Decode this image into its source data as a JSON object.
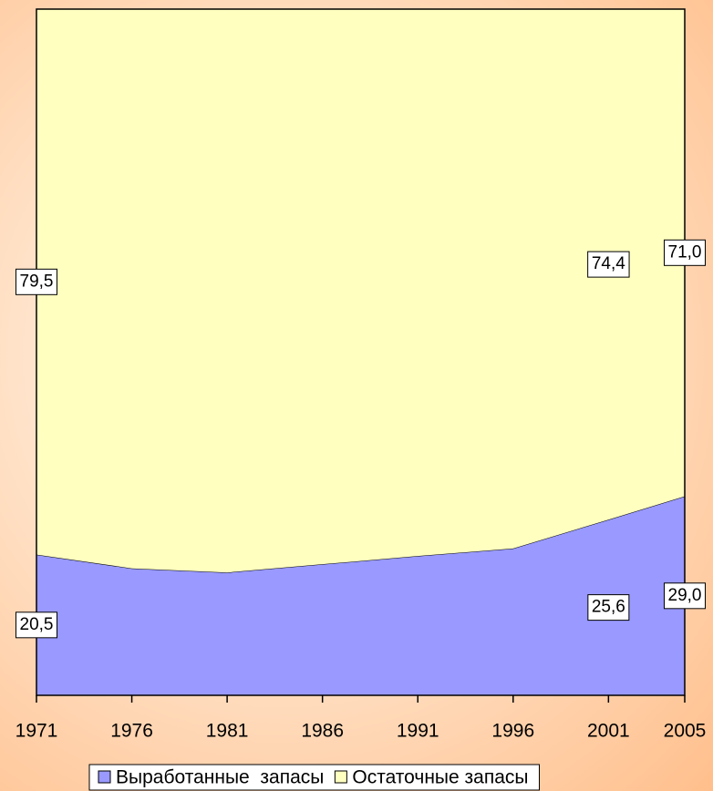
{
  "chart_data": {
    "type": "stacked-area",
    "x": [
      1971,
      1976,
      1981,
      1986,
      1991,
      1996,
      2001,
      2005
    ],
    "xlim": [
      1971,
      2005
    ],
    "xticks": [
      1971,
      1976,
      1981,
      1986,
      1991,
      1996,
      2001,
      2005
    ],
    "ylim": [
      0,
      100
    ],
    "series": [
      {
        "name": "Выработанные  запасы",
        "color": "#9999ff",
        "values": [
          20.5,
          18.5,
          17.9,
          19.1,
          20.3,
          21.4,
          25.6,
          29.0
        ],
        "value_labels": [
          "20,5",
          null,
          null,
          null,
          null,
          null,
          "25,6",
          "29,0"
        ]
      },
      {
        "name": "Остаточные запасы",
        "color": "#ffffc0",
        "values": [
          79.5,
          81.5,
          82.1,
          80.9,
          79.7,
          78.6,
          74.4,
          71.0
        ],
        "value_labels": [
          "79,5",
          null,
          null,
          null,
          null,
          null,
          "74,4",
          "71,0"
        ]
      }
    ],
    "legend": "bottom"
  }
}
